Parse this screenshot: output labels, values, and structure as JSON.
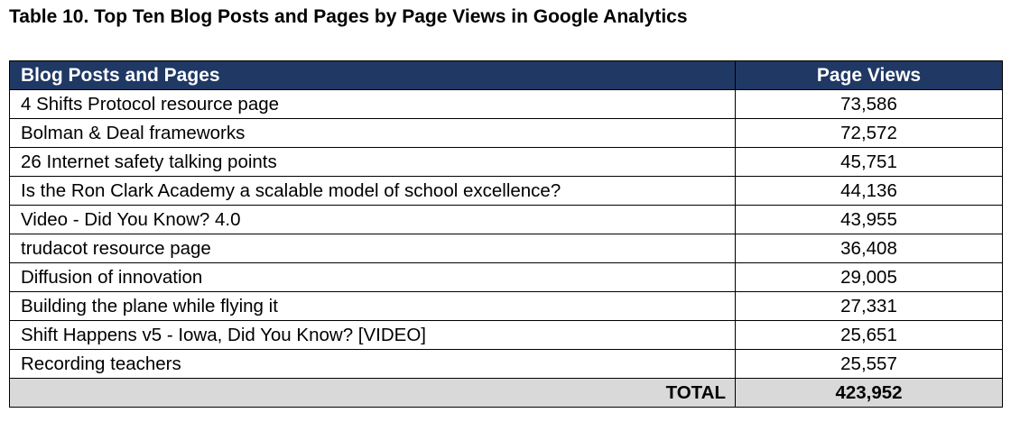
{
  "caption": "Table 10. Top Ten Blog Posts and Pages by Page Views in Google Analytics",
  "table": {
    "headers": [
      "Blog Posts and Pages",
      "Page Views"
    ],
    "rows": [
      {
        "name": "4 Shifts Protocol resource page",
        "views": "73,586"
      },
      {
        "name": "Bolman & Deal frameworks",
        "views": "72,572"
      },
      {
        "name": "26 Internet safety talking points",
        "views": "45,751"
      },
      {
        "name": "Is the Ron Clark Academy a scalable model of school excellence?",
        "views": "44,136"
      },
      {
        "name": "Video - Did You Know? 4.0",
        "views": "43,955"
      },
      {
        "name": "trudacot resource page",
        "views": "36,408"
      },
      {
        "name": "Diffusion of innovation",
        "views": "29,005"
      },
      {
        "name": "Building the plane while flying it",
        "views": "27,331"
      },
      {
        "name": "Shift Happens v5 - Iowa, Did You Know? [VIDEO]",
        "views": "25,651"
      },
      {
        "name": "Recording teachers",
        "views": "25,557"
      }
    ],
    "total": {
      "label": "TOTAL",
      "views": "423,952"
    }
  },
  "colors": {
    "header_bg": "#1f3864",
    "header_text": "#ffffff",
    "total_bg": "#d9d9d9"
  }
}
